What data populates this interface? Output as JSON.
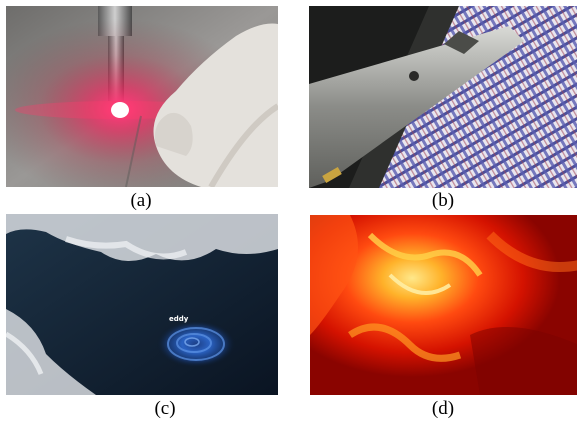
{
  "panels": [
    {
      "id": "a",
      "caption": "(a)"
    },
    {
      "id": "b",
      "caption": "(b)"
    },
    {
      "id": "c",
      "caption": "(c)",
      "label": "eddy"
    },
    {
      "id": "d",
      "caption": "(d)"
    }
  ]
}
